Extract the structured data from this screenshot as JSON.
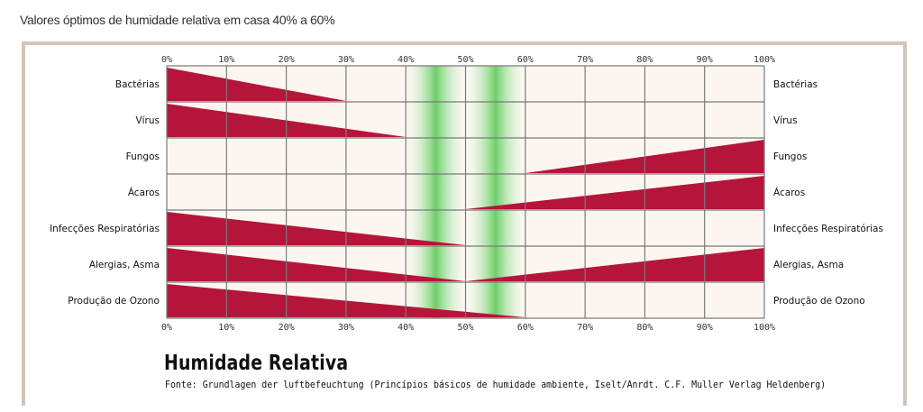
{
  "header": {
    "page_title": "Valores óptimos de humidade relativa em casa 40% a 60%"
  },
  "footer": {
    "chart_title": "Humidade Relativa",
    "source": "Fonte: Grundlagen der luftbefeuchtung (Princípios básicos de humidade ambiente, Iselt/Anrdt. C.F. Muller Verlag Heldenberg)"
  },
  "colors": {
    "risk_fill": "#b5153a",
    "optimal_zone": "#3cc23c",
    "cell_background": "#fdf6f0",
    "grid": "#7a7a7a"
  },
  "chart_data": {
    "type": "area",
    "title": "Humidade Relativa",
    "x_ticks": [
      "0%",
      "10%",
      "20%",
      "30%",
      "40%",
      "50%",
      "60%",
      "70%",
      "80%",
      "90%",
      "100%"
    ],
    "xlim": [
      0,
      100
    ],
    "optimal_range": [
      40,
      60
    ],
    "series": [
      {
        "name": "Bactérias",
        "points": [
          [
            0,
            1.0
          ],
          [
            30,
            0
          ]
        ]
      },
      {
        "name": "Vírus",
        "points": [
          [
            0,
            1.0
          ],
          [
            40,
            0
          ]
        ]
      },
      {
        "name": "Fungos",
        "points": [
          [
            60,
            0
          ],
          [
            100,
            1.0
          ]
        ]
      },
      {
        "name": "Ácaros",
        "points": [
          [
            50,
            0
          ],
          [
            100,
            1.0
          ]
        ]
      },
      {
        "name": "Infecções Respiratórias",
        "points": [
          [
            0,
            1.0
          ],
          [
            50,
            0
          ]
        ]
      },
      {
        "name": "Alergias, Asma",
        "points": [
          [
            0,
            1.0
          ],
          [
            50,
            0
          ],
          [
            100,
            1.0
          ]
        ]
      },
      {
        "name": "Produção de Ozono",
        "points": [
          [
            0,
            1.0
          ],
          [
            60,
            0
          ]
        ]
      }
    ]
  }
}
